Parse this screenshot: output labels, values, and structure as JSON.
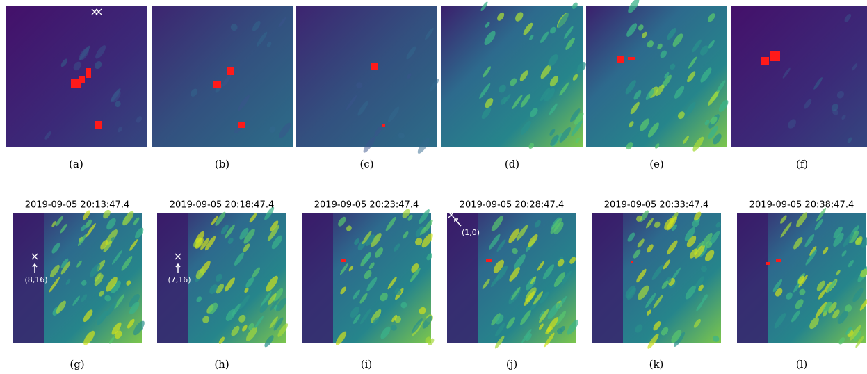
{
  "top_row": [
    {
      "label": "(a)"
    },
    {
      "label": "(b)"
    },
    {
      "label": "(c)"
    },
    {
      "label": "(d)"
    },
    {
      "label": "(e)"
    },
    {
      "label": "(f)"
    }
  ],
  "bottom_row": [
    {
      "title": "2019-09-05 20:13:47.4",
      "label": "(g)",
      "annotation": "(8,16)"
    },
    {
      "title": "2019-09-05 20:18:47.4",
      "label": "(h)",
      "annotation": "(7,16)"
    },
    {
      "title": "2019-09-05 20:23:47.4",
      "label": "(i)"
    },
    {
      "title": "2019-09-05 20:28:47.4",
      "label": "(j)",
      "annotation": "(1,0)"
    },
    {
      "title": "2019-09-05 20:33:47.4",
      "label": "(k)"
    },
    {
      "title": "2019-09-05 20:38:47.4",
      "label": "(l)"
    }
  ]
}
